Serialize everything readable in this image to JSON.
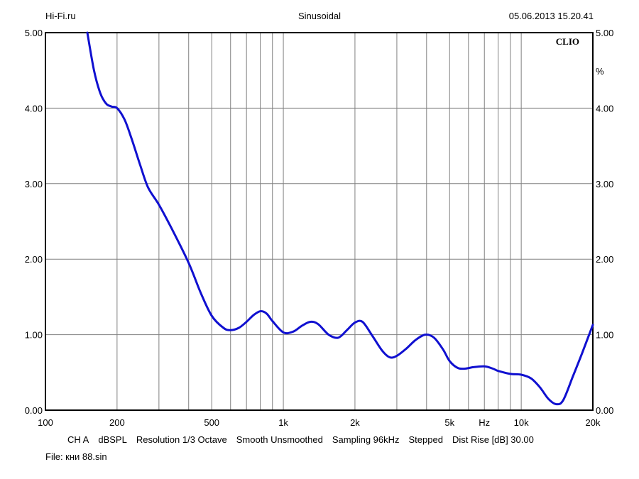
{
  "header": {
    "left": "Hi-Fi.ru",
    "center": "Sinusoidal",
    "right": "05.06.2013 15.20.41"
  },
  "brand": "CLIO",
  "footer": {
    "items": [
      "CH A",
      "dBSPL",
      "Resolution 1/3 Octave",
      "Smooth Unsmoothed",
      "Sampling 96kHz",
      "Stepped",
      "Dist Rise [dB] 30.00"
    ],
    "file": "File: кни 88.sin"
  },
  "colors": {
    "curve": "#1010d0",
    "grid": "#808080",
    "axes": "#000000"
  },
  "chart_data": {
    "type": "line",
    "title": "Sinusoidal",
    "x_scale": "log",
    "xlim": [
      100,
      20000
    ],
    "ylim": [
      0,
      5
    ],
    "grid": true,
    "x_tick_labels": [
      {
        "value": 100,
        "label": "100"
      },
      {
        "value": 200,
        "label": "200"
      },
      {
        "value": 500,
        "label": "500"
      },
      {
        "value": 1000,
        "label": "1k"
      },
      {
        "value": 2000,
        "label": "2k"
      },
      {
        "value": 5000,
        "label": "5k"
      },
      {
        "value": 7000,
        "label": "Hz"
      },
      {
        "value": 10000,
        "label": "10k"
      },
      {
        "value": 20000,
        "label": "20k"
      }
    ],
    "x_gridlines": [
      200,
      300,
      400,
      500,
      600,
      700,
      800,
      900,
      1000,
      2000,
      3000,
      4000,
      5000,
      6000,
      7000,
      8000,
      9000,
      10000
    ],
    "y_tick_labels": [
      "0.00",
      "1.00",
      "2.00",
      "3.00",
      "4.00",
      "5.00"
    ],
    "y_tick_values": [
      0,
      1,
      2,
      3,
      4,
      5
    ],
    "right_axis_unit": "%",
    "series": [
      {
        "x": [
          150,
          160,
          170,
          180,
          190,
          200,
          215,
          230,
          250,
          270,
          300,
          340,
          400,
          450,
          500,
          560,
          600,
          650,
          700,
          750,
          800,
          850,
          900,
          1000,
          1100,
          1200,
          1300,
          1400,
          1550,
          1700,
          1850,
          2000,
          2150,
          2350,
          2600,
          2800,
          3000,
          3300,
          3600,
          3950,
          4300,
          4700,
          5000,
          5400,
          5800,
          6300,
          7000,
          7600,
          8000,
          9000,
          10000,
          11000,
          12000,
          13000,
          14000,
          15000,
          16500,
          18000,
          20000
        ],
        "y": [
          5.0,
          4.5,
          4.2,
          4.06,
          4.02,
          4.0,
          3.85,
          3.6,
          3.25,
          2.95,
          2.72,
          2.4,
          1.95,
          1.55,
          1.25,
          1.09,
          1.06,
          1.09,
          1.17,
          1.26,
          1.31,
          1.28,
          1.18,
          1.03,
          1.04,
          1.12,
          1.17,
          1.14,
          1.0,
          0.96,
          1.06,
          1.16,
          1.17,
          1.0,
          0.79,
          0.7,
          0.72,
          0.82,
          0.93,
          1.0,
          0.96,
          0.8,
          0.65,
          0.56,
          0.55,
          0.57,
          0.58,
          0.55,
          0.52,
          0.48,
          0.47,
          0.42,
          0.3,
          0.15,
          0.08,
          0.13,
          0.45,
          0.75,
          1.13
        ]
      }
    ]
  }
}
